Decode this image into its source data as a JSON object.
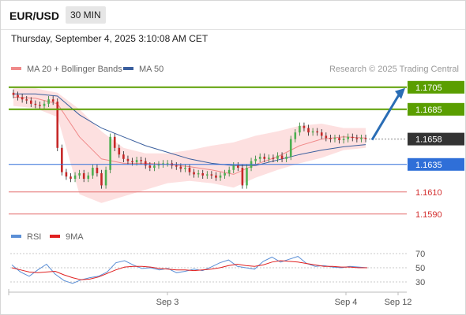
{
  "header": {
    "symbol": "EUR/USD",
    "timeframe": "30 MIN",
    "datetime": "Thursday, September 4, 2025 3:10:08 AM CET"
  },
  "legend_price": [
    {
      "label": "MA 20 + Bollinger Bands",
      "color": "#f08a8a"
    },
    {
      "label": "MA 50",
      "color": "#3b5f9e"
    }
  ],
  "copyright": "Research © 2025 Trading Central",
  "legend_rsi": [
    {
      "label": "RSI",
      "color": "#5b8fd6"
    },
    {
      "label": "9MA",
      "color": "#e02020"
    }
  ],
  "colors": {
    "resistance": "#5a9e00",
    "support": "#2f6fd8",
    "target_red": "#e36b6b",
    "arrow": "#2a6db5",
    "current": "#333333"
  },
  "chart_data": [
    {
      "type": "candlestick",
      "title": "EUR/USD",
      "timeframe": "30 MIN",
      "x_ticks": [
        "Sep 3",
        "Sep 4",
        "Sep 12"
      ],
      "ylim": [
        1.1582,
        1.1712
      ],
      "current_price": 1.1658,
      "levels": [
        {
          "value": 1.1705,
          "label": "1.1705",
          "kind": "resistance"
        },
        {
          "value": 1.1685,
          "label": "1.1685",
          "kind": "resistance"
        },
        {
          "value": 1.1635,
          "label": "1.1635",
          "kind": "pivot"
        },
        {
          "value": 1.161,
          "label": "1.1610",
          "kind": "target"
        },
        {
          "value": 1.159,
          "label": "1.1590",
          "kind": "target"
        }
      ],
      "close": [
        1.1698,
        1.1696,
        1.1694,
        1.1693,
        1.169,
        1.1689,
        1.1688,
        1.169,
        1.1694,
        1.1692,
        1.165,
        1.1628,
        1.1624,
        1.1622,
        1.1625,
        1.1627,
        1.1622,
        1.1625,
        1.1632,
        1.1627,
        1.1616,
        1.163,
        1.166,
        1.165,
        1.1644,
        1.164,
        1.1638,
        1.1637,
        1.1639,
        1.1638,
        1.1634,
        1.1632,
        1.1634,
        1.1635,
        1.1636,
        1.1636,
        1.1634,
        1.1633,
        1.1631,
        1.1632,
        1.1628,
        1.1626,
        1.1627,
        1.1625,
        1.1626,
        1.1625,
        1.1623,
        1.1625,
        1.1627,
        1.163,
        1.1634,
        1.1632,
        1.1616,
        1.1632,
        1.1638,
        1.164,
        1.1642,
        1.164,
        1.1641,
        1.164,
        1.1643,
        1.164,
        1.1642,
        1.1658,
        1.1664,
        1.167,
        1.1668,
        1.1664,
        1.1665,
        1.1664,
        1.1661,
        1.1659,
        1.1658,
        1.1659,
        1.1657,
        1.1658,
        1.166,
        1.1659,
        1.1658,
        1.1659,
        1.1658
      ],
      "ma20_bb_upper": [
        1.1704,
        1.1704,
        1.17,
        1.1685,
        1.1665,
        1.165,
        1.1645,
        1.1645,
        1.1648,
        1.1652,
        1.1655,
        1.1661,
        1.1665,
        1.167,
        1.1672,
        1.1668,
        1.1668
      ],
      "ma20_bb_lower": [
        1.1688,
        1.1686,
        1.1678,
        1.1608,
        1.16,
        1.1606,
        1.1612,
        1.1618,
        1.162,
        1.1618,
        1.1614,
        1.1623,
        1.163,
        1.1636,
        1.1641,
        1.1648,
        1.165
      ],
      "ma20": [
        1.1696,
        1.1695,
        1.169,
        1.166,
        1.164,
        1.1636,
        1.1636,
        1.1635,
        1.1633,
        1.163,
        1.1626,
        1.1635,
        1.1642,
        1.1652,
        1.1658,
        1.166,
        1.1659
      ],
      "ma50": [
        1.1699,
        1.1699,
        1.1697,
        1.168,
        1.1668,
        1.166,
        1.1652,
        1.1646,
        1.164,
        1.1636,
        1.1634,
        1.1634,
        1.1639,
        1.1644,
        1.1648,
        1.1651,
        1.1653
      ],
      "forecast_arrow": {
        "from": 1.1658,
        "to": 1.1705
      }
    },
    {
      "type": "line",
      "title": "RSI",
      "ylim": [
        20,
        80
      ],
      "y_ticks": [
        30,
        50,
        70
      ],
      "series": [
        {
          "name": "RSI",
          "values": [
            54,
            44,
            38,
            47,
            55,
            41,
            32,
            28,
            33,
            36,
            38,
            44,
            57,
            60,
            54,
            49,
            50,
            47,
            49,
            43,
            45,
            48,
            46,
            51,
            57,
            61,
            52,
            50,
            48,
            59,
            65,
            58,
            62,
            66,
            56,
            52,
            53,
            51,
            50,
            52,
            51,
            50
          ]
        },
        {
          "name": "9MA",
          "values": [
            50,
            47,
            44,
            43,
            44,
            45,
            40,
            36,
            33,
            34,
            37,
            42,
            47,
            51,
            52,
            52,
            51,
            49,
            48,
            47,
            47,
            46,
            47,
            48,
            50,
            53,
            55,
            53,
            52,
            54,
            58,
            60,
            59,
            58,
            56,
            54,
            52,
            52,
            51,
            51,
            50,
            50
          ]
        }
      ]
    }
  ]
}
